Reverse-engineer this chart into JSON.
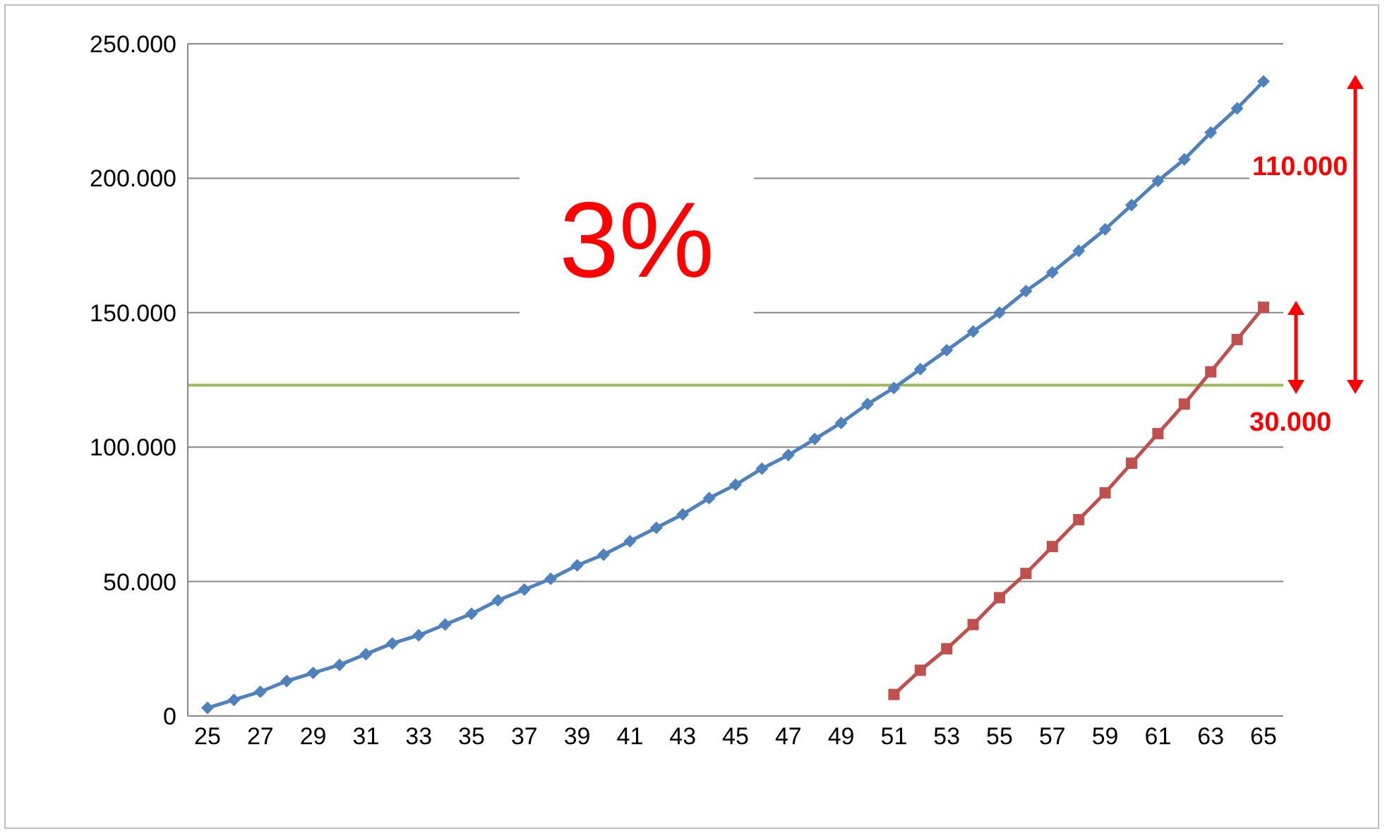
{
  "chart_data": {
    "type": "line",
    "categories": [
      "25",
      null,
      "27",
      null,
      "29",
      null,
      "31",
      null,
      "33",
      null,
      "35",
      null,
      "37",
      null,
      "39",
      null,
      "41",
      null,
      "43",
      null,
      "45",
      null,
      "47",
      null,
      "49",
      null,
      "51",
      null,
      "53",
      null,
      "55",
      null,
      "57",
      null,
      "59",
      null,
      "61",
      null,
      "63",
      null,
      "65"
    ],
    "series": [
      {
        "color": "#4f81bd",
        "marker": "diamond",
        "values": [
          3000,
          6000,
          9000,
          13000,
          16000,
          19000,
          23000,
          27000,
          30000,
          34000,
          38000,
          43000,
          47000,
          51000,
          56000,
          60000,
          65000,
          70000,
          75000,
          81000,
          86000,
          92000,
          97000,
          103000,
          109000,
          116000,
          122000,
          129000,
          136000,
          143000,
          150000,
          158000,
          165000,
          173000,
          181000,
          190000,
          199000,
          207000,
          217000,
          226000,
          236000
        ]
      },
      {
        "color": "#c0504d",
        "marker": "square",
        "values": [
          null,
          null,
          null,
          null,
          null,
          null,
          null,
          null,
          null,
          null,
          null,
          null,
          null,
          null,
          null,
          null,
          null,
          null,
          null,
          null,
          null,
          null,
          null,
          null,
          null,
          null,
          8000,
          17000,
          25000,
          34000,
          44000,
          53000,
          63000,
          73000,
          83000,
          94000,
          105000,
          116000,
          128000,
          140000,
          152000
        ]
      }
    ],
    "ylim": [
      0,
      250000
    ],
    "yticks": [
      {
        "value": 0,
        "label": "0"
      },
      {
        "value": 50000,
        "label": "50.000"
      },
      {
        "value": 100000,
        "label": "100.000"
      },
      {
        "value": 150000,
        "label": "150.000"
      },
      {
        "value": 200000,
        "label": "200.000"
      },
      {
        "value": 250000,
        "label": "250.000"
      }
    ],
    "grid": "y",
    "ref_lines": [
      {
        "axis": "y",
        "value": 123000,
        "color": "#9bbb59"
      }
    ],
    "annotations": [
      "3%",
      "110.000",
      "30.000"
    ]
  }
}
